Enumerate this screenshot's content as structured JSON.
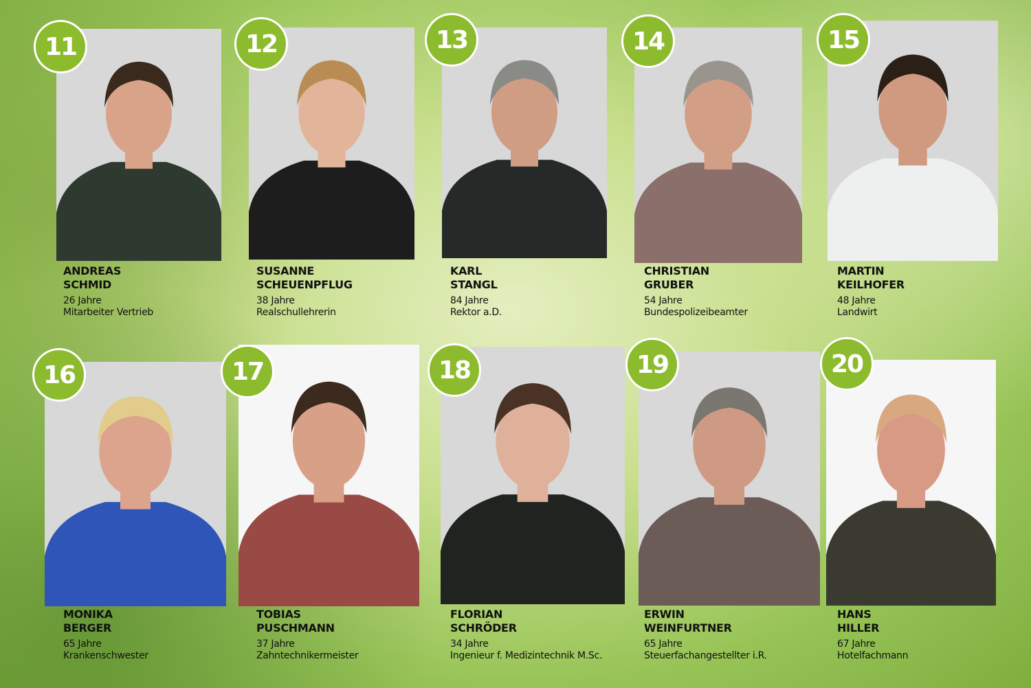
{
  "candidates": [
    {
      "number": "11",
      "first": "ANDREAS",
      "last": "SCHMID",
      "age": "26 Jahre",
      "job": "Mitarbeiter Vertrieb",
      "clothing": "#2e3a30",
      "skin": "#d9a38a",
      "hair": "#3a2a1e"
    },
    {
      "number": "12",
      "first": "SUSANNE",
      "last": "SCHEUENPFLUG",
      "age": "38 Jahre",
      "job": "Realschullehrerin",
      "clothing": "#1d1d1d",
      "skin": "#e2b49a",
      "hair": "#b88c52"
    },
    {
      "number": "13",
      "first": "KARL",
      "last": "STANGL",
      "age": "84 Jahre",
      "job": "Rektor a.D.",
      "clothing": "#252a28",
      "skin": "#cf9c84",
      "hair": "#8a8a86"
    },
    {
      "number": "14",
      "first": "CHRISTIAN",
      "last": "GRUBER",
      "age": "54 Jahre",
      "job": "Bundespolizeibeamter",
      "clothing": "#8a6f6a",
      "skin": "#d39e86",
      "hair": "#9a958c"
    },
    {
      "number": "15",
      "first": "MARTIN",
      "last": "KEILHOFER",
      "age": "48 Jahre",
      "job": "Landwirt",
      "clothing": "#eef0f0",
      "skin": "#cf9a80",
      "hair": "#2b2018"
    },
    {
      "number": "16",
      "first": "MONIKA",
      "last": "BERGER",
      "age": "65 Jahre",
      "job": "Krankenschwester",
      "clothing": "#2f55b8",
      "skin": "#dca48c",
      "hair": "#e2cc8c"
    },
    {
      "number": "17",
      "first": "TOBIAS",
      "last": "PUSCHMANN",
      "age": "37 Jahre",
      "job": "Zahntechnikermeister",
      "clothing": "#9a4a44",
      "skin": "#d9a088",
      "hair": "#3c2a1e"
    },
    {
      "number": "18",
      "first": "FLORIAN",
      "last": "SCHRÖDER",
      "age": "34 Jahre",
      "job": "Ingenieur f. Medizintechnik M.Sc.",
      "clothing": "#1f2420",
      "skin": "#dfb09a",
      "hair": "#4a3324"
    },
    {
      "number": "19",
      "first": "ERWIN",
      "last": "WEINFURTNER",
      "age": "65 Jahre",
      "job": "Steuerfachangestellter i.R.",
      "clothing": "#6c5c58",
      "skin": "#cf9a84",
      "hair": "#7a7670"
    },
    {
      "number": "20",
      "first": "HANS",
      "last": "HILLER",
      "age": "67 Jahre",
      "job": "Hotelfachmann",
      "clothing": "#3a3a30",
      "skin": "#d89a84",
      "hair": "#d8a880"
    }
  ],
  "colors": {
    "badge": "#8dbb2e",
    "badge_border": "#ffffff",
    "text": "#111111"
  }
}
